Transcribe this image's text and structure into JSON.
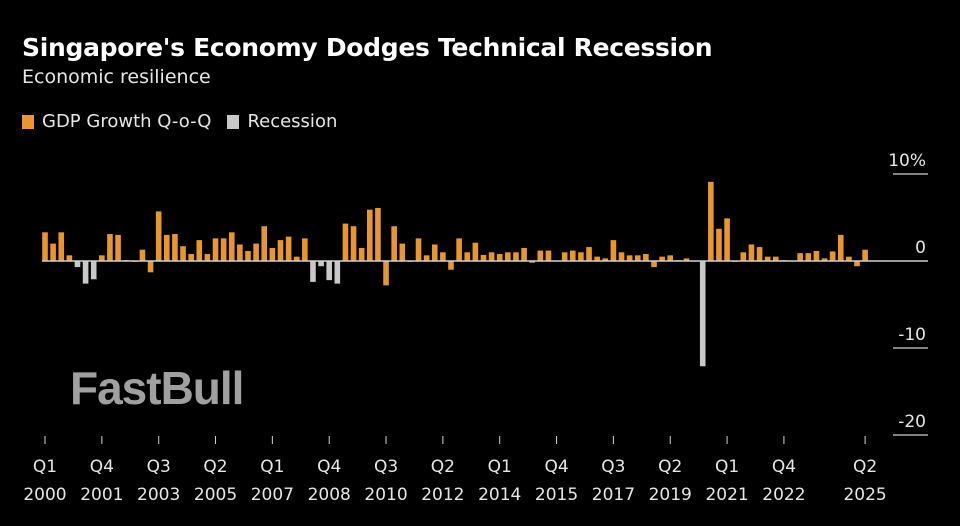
{
  "chart_data": {
    "type": "bar",
    "title": "Singapore's Economy Dodges Technical Recession",
    "subtitle": "Economic resilience",
    "legend": [
      {
        "name": "GDP Growth Q-o-Q",
        "color": "#e8962e"
      },
      {
        "name": "Recession",
        "color": "#c8c8c8"
      }
    ],
    "legend_placement": "top-left",
    "x_start": "Q1 2000",
    "x_end": "Q2 2025",
    "x_tick_labels": [
      {
        "index": 0,
        "q": "Q1",
        "year": "2000"
      },
      {
        "index": 7,
        "q": "Q4",
        "year": "2001"
      },
      {
        "index": 14,
        "q": "Q3",
        "year": "2003"
      },
      {
        "index": 21,
        "q": "Q2",
        "year": "2005"
      },
      {
        "index": 28,
        "q": "Q1",
        "year": "2007"
      },
      {
        "index": 35,
        "q": "Q4",
        "year": "2008"
      },
      {
        "index": 42,
        "q": "Q3",
        "year": "2010"
      },
      {
        "index": 49,
        "q": "Q2",
        "year": "2012"
      },
      {
        "index": 56,
        "q": "Q1",
        "year": "2014"
      },
      {
        "index": 63,
        "q": "Q4",
        "year": "2015"
      },
      {
        "index": 70,
        "q": "Q3",
        "year": "2017"
      },
      {
        "index": 77,
        "q": "Q2",
        "year": "2019"
      },
      {
        "index": 84,
        "q": "Q1",
        "year": "2021"
      },
      {
        "index": 91,
        "q": "Q4",
        "year": "2022"
      },
      {
        "index": 101,
        "q": "Q2",
        "year": "2025"
      }
    ],
    "y_ticks": [
      {
        "value": 10,
        "label": "10%"
      },
      {
        "value": 0,
        "label": "0"
      },
      {
        "value": -10,
        "label": "-10"
      },
      {
        "value": -20,
        "label": "-20"
      }
    ],
    "ylim": [
      -20,
      12
    ],
    "y_axis_side": "right",
    "grid": false,
    "values": [
      3.3,
      2.0,
      3.3,
      0.65,
      -0.7,
      -2.6,
      -2.1,
      0.65,
      3.1,
      3.0,
      0.1,
      -0.1,
      1.3,
      -1.3,
      5.7,
      3.0,
      3.1,
      1.7,
      0.8,
      2.4,
      0.8,
      2.6,
      2.6,
      3.3,
      1.9,
      1.15,
      2.0,
      4.0,
      1.5,
      2.4,
      2.8,
      0.5,
      2.6,
      -2.4,
      -0.6,
      -2.2,
      -2.6,
      4.3,
      4.0,
      1.5,
      5.9,
      6.1,
      -2.8,
      4.0,
      2.0,
      -0.1,
      2.6,
      0.65,
      1.9,
      1.0,
      -1.0,
      2.6,
      1.0,
      2.1,
      0.7,
      1.0,
      0.8,
      1.0,
      1.0,
      1.5,
      -0.2,
      1.2,
      1.2,
      -0.05,
      1.0,
      1.2,
      1.0,
      1.6,
      0.5,
      0.3,
      2.4,
      1.0,
      0.65,
      0.65,
      0.8,
      -0.7,
      0.5,
      0.65,
      0.1,
      0.3,
      0.0,
      -12.1,
      9.1,
      3.7,
      4.9,
      -0.1,
      1.0,
      1.9,
      1.6,
      0.5,
      0.5,
      0.1,
      -0.05,
      0.9,
      0.9,
      1.15,
      0.3,
      1.1,
      3.0,
      0.5,
      -0.6,
      1.3
    ],
    "recession_indices": [
      4,
      5,
      6,
      33,
      34,
      35,
      36,
      81
    ]
  },
  "watermark": "FastBull"
}
